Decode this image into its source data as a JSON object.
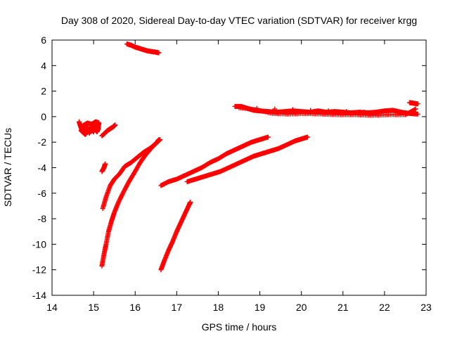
{
  "chart_data": {
    "type": "scatter",
    "title": "Day 308 of 2020, Sidereal Day-to-day VTEC variation (SDTVAR) for receiver krgg",
    "xlabel": "GPS time / hours",
    "ylabel": "SDTVAR / TECUs",
    "xlim": [
      14,
      23
    ],
    "ylim": [
      -14,
      6
    ],
    "xticks": [
      14,
      15,
      16,
      17,
      18,
      19,
      20,
      21,
      22,
      23
    ],
    "yticks": [
      -14,
      -12,
      -10,
      -8,
      -6,
      -4,
      -2,
      0,
      2,
      4,
      6
    ],
    "grid": false,
    "legend": "none",
    "marker": "plus",
    "series_color": "#ff0000",
    "arcs": [
      {
        "points": [
          [
            14.65,
            -0.4
          ],
          [
            14.7,
            -0.9
          ],
          [
            14.78,
            -1.2
          ],
          [
            14.85,
            -0.8
          ],
          [
            14.9,
            -1.3
          ],
          [
            14.95,
            -0.9
          ],
          [
            15.0,
            -1.2
          ],
          [
            15.05,
            -0.7
          ],
          [
            15.1,
            -1.0
          ],
          [
            15.13,
            -0.5
          ],
          [
            15.05,
            -0.4
          ],
          [
            14.95,
            -0.6
          ],
          [
            14.85,
            -0.5
          ],
          [
            14.75,
            -0.7
          ],
          [
            14.7,
            -1.1
          ],
          [
            14.8,
            -1.4
          ],
          [
            14.9,
            -1.0
          ],
          [
            15.0,
            -0.8
          ],
          [
            15.08,
            -1.2
          ],
          [
            15.12,
            -0.9
          ]
        ]
      },
      {
        "points": [
          [
            15.2,
            -1.5
          ],
          [
            15.27,
            -1.3
          ],
          [
            15.33,
            -1.1
          ],
          [
            15.4,
            -0.95
          ],
          [
            15.47,
            -0.8
          ],
          [
            15.52,
            -0.65
          ]
        ]
      },
      {
        "points": [
          [
            15.2,
            -4.3
          ],
          [
            15.25,
            -4.0
          ],
          [
            15.28,
            -3.7
          ]
        ]
      },
      {
        "points": [
          [
            15.22,
            -7.2
          ],
          [
            15.3,
            -6.3
          ],
          [
            15.4,
            -5.4
          ],
          [
            15.5,
            -4.9
          ],
          [
            15.62,
            -4.5
          ],
          [
            15.75,
            -3.9
          ],
          [
            15.9,
            -3.6
          ],
          [
            16.05,
            -3.2
          ],
          [
            16.2,
            -2.8
          ],
          [
            16.35,
            -2.5
          ],
          [
            16.5,
            -2.1
          ],
          [
            16.57,
            -1.8
          ]
        ]
      },
      {
        "points": [
          [
            15.2,
            -11.7
          ],
          [
            15.25,
            -10.8
          ],
          [
            15.3,
            -10.0
          ],
          [
            15.36,
            -9.0
          ],
          [
            15.43,
            -8.2
          ],
          [
            15.5,
            -7.5
          ],
          [
            15.6,
            -6.7
          ],
          [
            15.72,
            -5.9
          ],
          [
            15.85,
            -5.1
          ],
          [
            15.98,
            -4.4
          ],
          [
            16.12,
            -3.6
          ],
          [
            16.25,
            -3.0
          ],
          [
            16.38,
            -2.5
          ],
          [
            16.5,
            -2.1
          ],
          [
            16.6,
            -1.8
          ]
        ]
      },
      {
        "points": [
          [
            15.8,
            5.7
          ],
          [
            15.9,
            5.6
          ],
          [
            16.0,
            5.45
          ],
          [
            16.1,
            5.35
          ],
          [
            16.2,
            5.25
          ],
          [
            16.3,
            5.15
          ],
          [
            16.4,
            5.1
          ],
          [
            16.5,
            5.05
          ],
          [
            16.57,
            5.0
          ]
        ]
      },
      {
        "points": [
          [
            16.62,
            -5.4
          ],
          [
            16.8,
            -5.1
          ],
          [
            17.0,
            -4.9
          ],
          [
            17.2,
            -4.6
          ],
          [
            17.4,
            -4.3
          ],
          [
            17.6,
            -4.0
          ],
          [
            17.8,
            -3.6
          ],
          [
            18.0,
            -3.3
          ],
          [
            18.2,
            -2.9
          ],
          [
            18.4,
            -2.6
          ],
          [
            18.6,
            -2.3
          ],
          [
            18.8,
            -2.0
          ],
          [
            19.0,
            -1.8
          ],
          [
            19.2,
            -1.6
          ]
        ]
      },
      {
        "points": [
          [
            17.25,
            -5.1
          ],
          [
            17.45,
            -4.9
          ],
          [
            17.65,
            -4.7
          ],
          [
            17.85,
            -4.5
          ],
          [
            18.05,
            -4.3
          ],
          [
            18.25,
            -4.0
          ],
          [
            18.45,
            -3.7
          ],
          [
            18.65,
            -3.4
          ],
          [
            18.85,
            -3.1
          ],
          [
            19.05,
            -2.9
          ],
          [
            19.25,
            -2.7
          ],
          [
            19.45,
            -2.5
          ],
          [
            19.65,
            -2.2
          ],
          [
            19.85,
            -1.9
          ],
          [
            20.0,
            -1.75
          ],
          [
            20.15,
            -1.6
          ]
        ]
      },
      {
        "points": [
          [
            16.62,
            -12.0
          ],
          [
            16.7,
            -11.3
          ],
          [
            16.8,
            -10.5
          ],
          [
            16.9,
            -9.8
          ],
          [
            17.0,
            -9.0
          ],
          [
            17.1,
            -8.3
          ],
          [
            17.2,
            -7.6
          ],
          [
            17.3,
            -6.9
          ],
          [
            17.33,
            -6.7
          ]
        ]
      },
      {
        "points": [
          [
            18.4,
            0.8
          ],
          [
            18.55,
            0.8
          ],
          [
            18.7,
            0.65
          ],
          [
            18.85,
            0.5
          ],
          [
            19.0,
            0.45
          ],
          [
            19.2,
            0.4
          ],
          [
            19.4,
            0.35
          ],
          [
            19.6,
            0.4
          ],
          [
            19.8,
            0.45
          ],
          [
            20.0,
            0.4
          ],
          [
            20.2,
            0.35
          ],
          [
            20.4,
            0.45
          ],
          [
            20.6,
            0.35
          ],
          [
            20.8,
            0.4
          ],
          [
            21.0,
            0.35
          ],
          [
            21.2,
            0.3
          ],
          [
            21.4,
            0.35
          ],
          [
            21.6,
            0.3
          ],
          [
            21.8,
            0.35
          ],
          [
            22.0,
            0.45
          ],
          [
            22.2,
            0.5
          ],
          [
            22.4,
            0.35
          ],
          [
            22.6,
            0.25
          ],
          [
            22.8,
            0.2
          ],
          [
            18.5,
            0.7
          ],
          [
            18.9,
            0.55
          ],
          [
            19.3,
            0.25
          ],
          [
            19.7,
            0.2
          ],
          [
            20.1,
            0.25
          ],
          [
            20.5,
            0.2
          ],
          [
            20.9,
            0.15
          ],
          [
            21.3,
            0.15
          ],
          [
            21.7,
            0.1
          ],
          [
            22.1,
            0.15
          ],
          [
            22.5,
            0.15
          ],
          [
            22.75,
            0.6
          ]
        ]
      },
      {
        "points": [
          [
            22.6,
            1.1
          ],
          [
            22.7,
            1.05
          ],
          [
            22.8,
            1.0
          ]
        ]
      }
    ]
  }
}
